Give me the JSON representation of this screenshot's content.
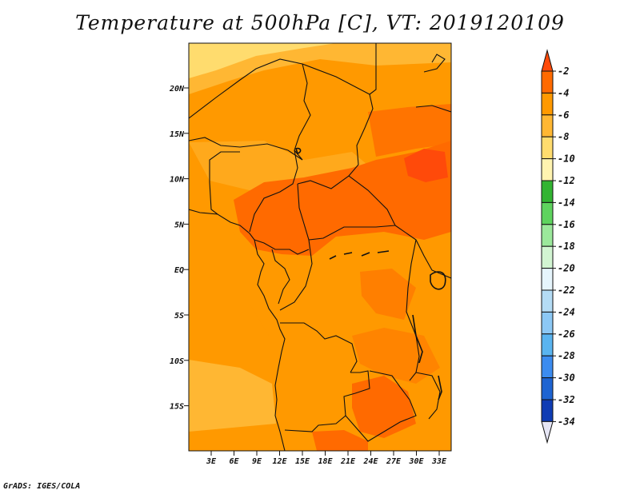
{
  "title": "Temperature at 500hPa [C], VT: 2019120109",
  "credit": "GrADS: IGES/COLA",
  "map": {
    "lat_labels": [
      "20N",
      "15N",
      "10N",
      "5N",
      "EQ",
      "5S",
      "10S",
      "15S"
    ],
    "lon_labels": [
      "3E",
      "6E",
      "9E",
      "12E",
      "15E",
      "18E",
      "21E",
      "24E",
      "27E",
      "30E",
      "33E"
    ]
  },
  "colorbar": {
    "labels": [
      "-2",
      "-4",
      "-6",
      "-8",
      "-10",
      "-12",
      "-14",
      "-16",
      "-18",
      "-20",
      "-22",
      "-24",
      "-26",
      "-28",
      "-30",
      "-32",
      "-34"
    ],
    "colors": [
      "#ff4a0a",
      "#ff6a00",
      "#ff9900",
      "#ffb733",
      "#ffdc6e",
      "#fff4b0",
      "#32b432",
      "#5ed35e",
      "#9be89b",
      "#d2f5d2",
      "#e6f5fc",
      "#b4dcf5",
      "#8cc8f5",
      "#5ab4f0",
      "#3c8cf0",
      "#1e64d2",
      "#0f3cb4",
      "#0a1478"
    ],
    "top_arrow_color": "#ff4a0a",
    "bottom_arrow_color": "#e6e6f5"
  }
}
